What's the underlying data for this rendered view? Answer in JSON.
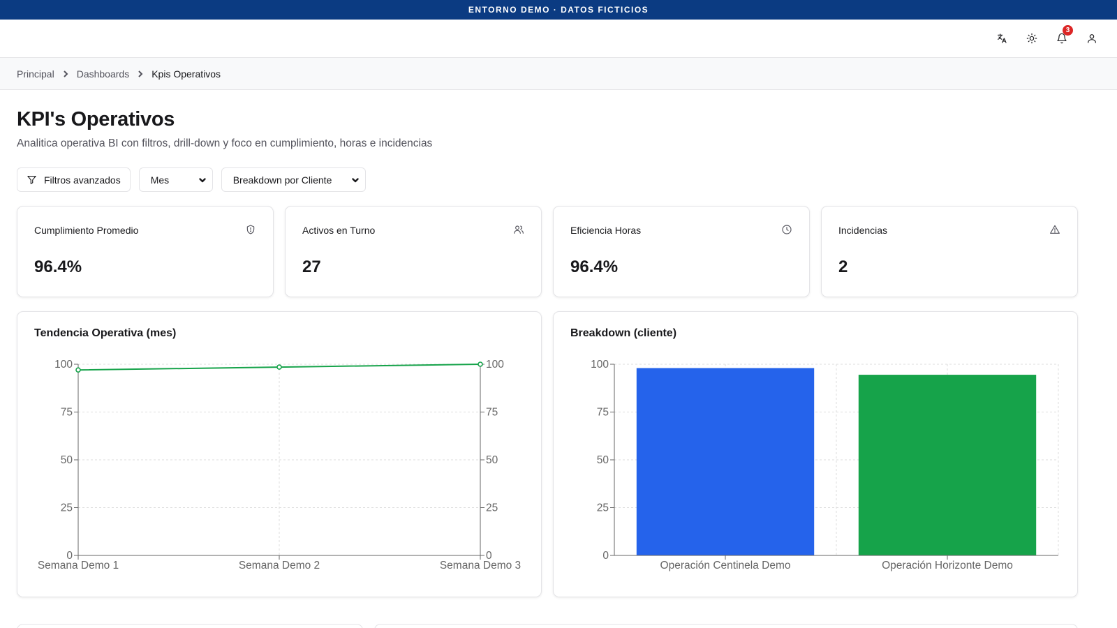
{
  "banner": {
    "text": "ENTORNO DEMO · DATOS FICTICIOS"
  },
  "topbar": {
    "icons": [
      "translate-icon",
      "sun-icon",
      "bell-icon",
      "user-icon"
    ],
    "notification_count": "3"
  },
  "breadcrumb": {
    "items": [
      "Principal",
      "Dashboards",
      "Kpis Operativos"
    ]
  },
  "page": {
    "title": "KPI's Operativos",
    "subtitle": "Analitica operativa BI con filtros, drill-down y foco en cumplimiento, horas e incidencias"
  },
  "filters": {
    "advanced_label": "Filtros avanzados",
    "period_value": "Mes",
    "breakdown_value": "Breakdown por Cliente"
  },
  "kpis": [
    {
      "label": "Cumplimiento Promedio",
      "value": "96.4%",
      "icon": "shield-icon"
    },
    {
      "label": "Activos en Turno",
      "value": "27",
      "icon": "users-icon"
    },
    {
      "label": "Eficiencia Horas",
      "value": "96.4%",
      "icon": "clock-icon"
    },
    {
      "label": "Incidencias",
      "value": "2",
      "icon": "alert-triangle-icon"
    }
  ],
  "charts": {
    "trend_title": "Tendencia Operativa (mes)",
    "breakdown_title": "Breakdown (cliente)"
  },
  "colors": {
    "banner": "#0b3b82",
    "line": "#16a34a",
    "bar_1": "#2563eb",
    "bar_2": "#16a34a",
    "badge": "#dc2626"
  },
  "chart_data": [
    {
      "type": "line",
      "categories": [
        "Semana Demo 1",
        "Semana Demo 2",
        "Semana Demo 3"
      ],
      "series": [
        {
          "values": [
            97,
            98.5,
            100
          ]
        }
      ],
      "ylim": [
        0,
        100
      ],
      "yticks": [
        0,
        25,
        50,
        75,
        100
      ],
      "right_axis_ticks": [
        0,
        25,
        50,
        75,
        100
      ],
      "grid": true
    },
    {
      "type": "bar",
      "categories": [
        "Operación Centinela Demo",
        "Operación Horizonte Demo"
      ],
      "values": [
        98,
        94.5
      ],
      "ylim": [
        0,
        100
      ],
      "yticks": [
        0,
        25,
        50,
        75,
        100
      ],
      "grid": true
    }
  ]
}
